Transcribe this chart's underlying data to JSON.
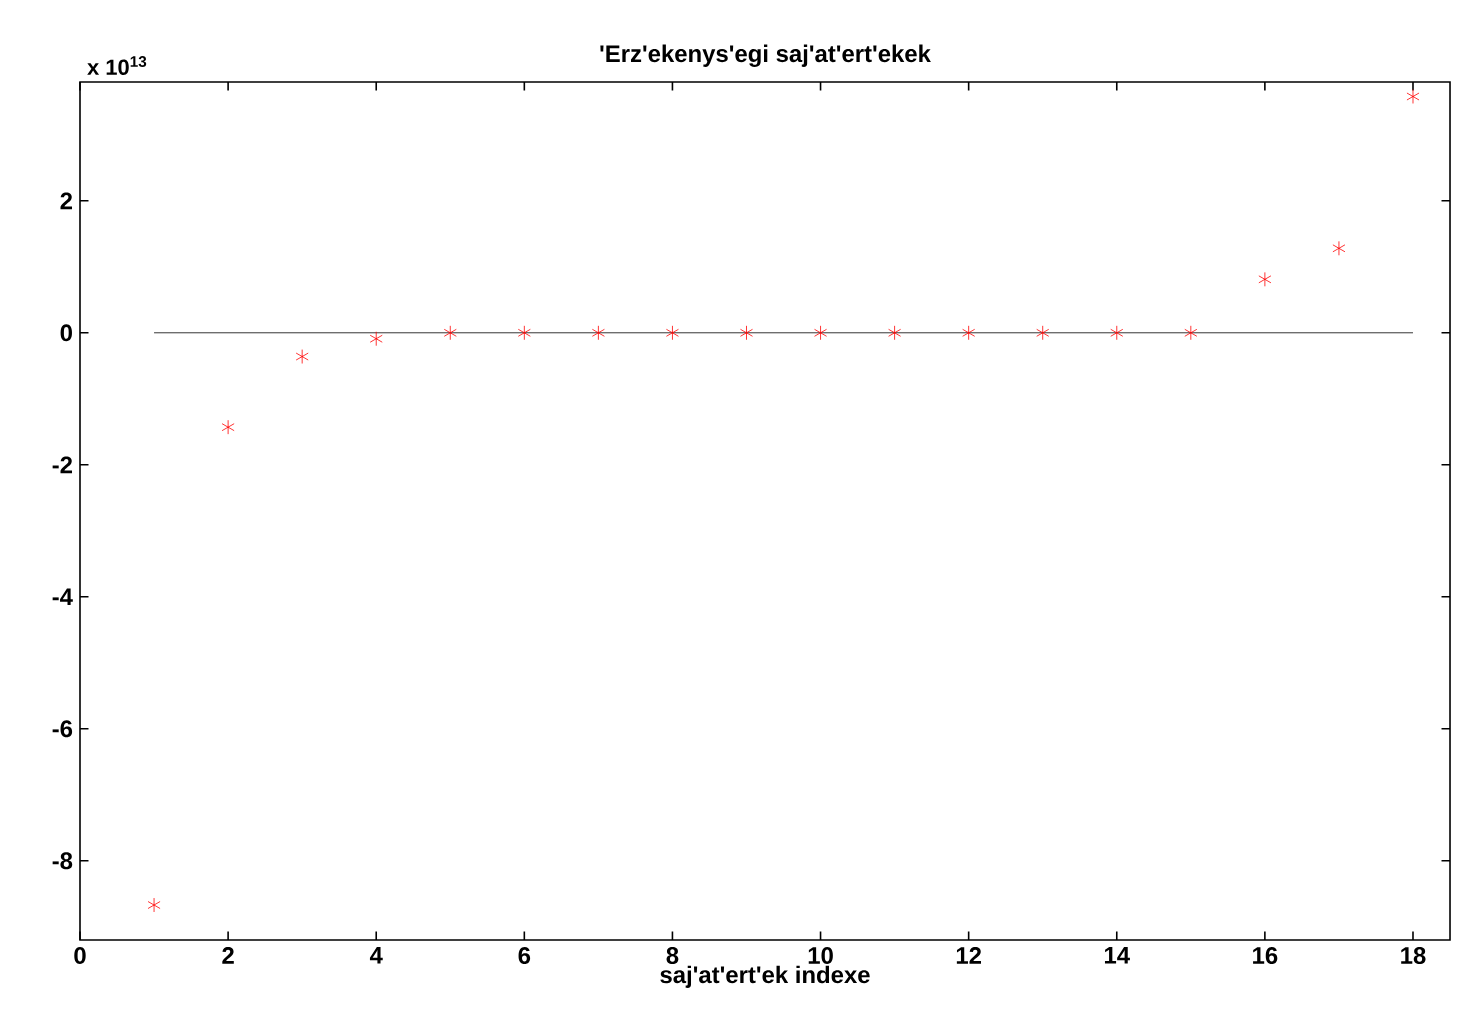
{
  "chart_data": {
    "type": "scatter",
    "title": "'Erz'ekenys'egi saj'at'ert'ekek",
    "xlabel": "saj'at'ert'ek indexe",
    "annotations": [
      "x 10$^{13}$"
    ],
    "x": [
      1,
      2,
      3,
      4,
      5,
      6,
      7,
      8,
      9,
      10,
      11,
      12,
      13,
      14,
      15,
      16,
      17,
      18
    ],
    "series": [
      {
        "type": "line",
        "color": "#000000",
        "line_style": "solid",
        "marker": "none",
        "x": [
          1,
          18
        ],
        "values": [
          0,
          0
        ]
      },
      {
        "color": "#ff0000",
        "values": [
          -8.67,
          -1.43,
          -0.36,
          -0.09,
          0,
          0,
          0,
          0,
          0,
          0,
          0,
          0,
          0,
          0,
          0,
          0.81,
          1.28,
          3.58
        ]
      }
    ],
    "marker": "cross",
    "xlim": [
      0,
      18.5
    ],
    "ylim": [
      -9.2,
      3.8
    ],
    "xticks": [
      0,
      2,
      4,
      6,
      8,
      10,
      12,
      14,
      16,
      18
    ],
    "yticks": [
      -8,
      -6,
      -4,
      -2,
      0,
      2
    ]
  }
}
